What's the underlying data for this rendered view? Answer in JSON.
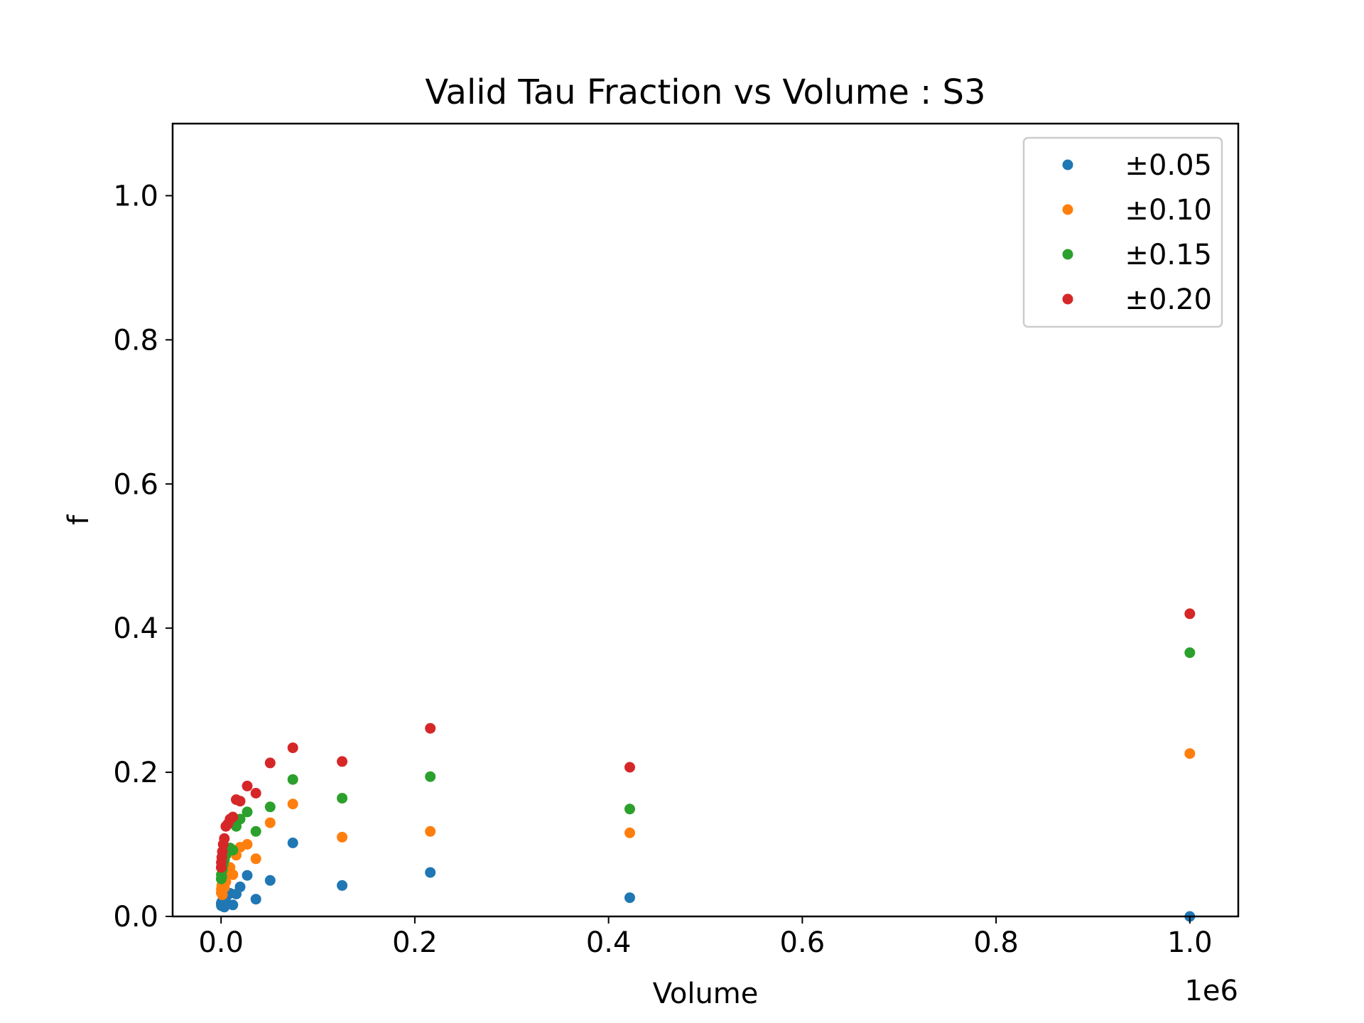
{
  "chart_data": {
    "type": "scatter",
    "title": "Valid Tau Fraction vs Volume : S3",
    "xlabel": "Volume",
    "ylabel": "f",
    "x_offset_label": "1e6",
    "xlim": [
      -0.05,
      1.05
    ],
    "ylim": [
      0.0,
      1.1
    ],
    "x_ticks": [
      0.0,
      0.2,
      0.4,
      0.6,
      0.8,
      1.0
    ],
    "x_tick_labels": [
      "0.0",
      "0.2",
      "0.4",
      "0.6",
      "0.8",
      "1.0"
    ],
    "y_ticks": [
      0.0,
      0.2,
      0.4,
      0.6,
      0.8,
      1.0
    ],
    "y_tick_labels": [
      "0.0",
      "0.2",
      "0.4",
      "0.6",
      "0.8",
      "1.0"
    ],
    "grid": false,
    "legend_position": "top-right",
    "x": [
      0.000125,
      0.000343,
      0.000729,
      0.001331,
      0.002197,
      0.003375,
      0.004913,
      0.006859,
      0.009261,
      0.012167,
      0.015625,
      0.019683,
      0.027,
      0.035937,
      0.050653,
      0.074088,
      0.125,
      0.216,
      0.421875,
      1.0
    ],
    "series": [
      {
        "name": "±0.05",
        "color": "#1f77b4",
        "values": [
          0.018,
          0.015,
          0.02,
          0.017,
          0.014,
          0.013,
          0.02,
          0.03,
          0.032,
          0.016,
          0.031,
          0.041,
          0.057,
          0.024,
          0.05,
          0.102,
          0.043,
          0.061,
          0.026,
          0.0
        ]
      },
      {
        "name": "±0.10",
        "color": "#ff7f0e",
        "values": [
          0.033,
          0.038,
          0.043,
          0.03,
          0.045,
          0.04,
          0.048,
          0.06,
          0.068,
          0.058,
          0.085,
          0.096,
          0.1,
          0.08,
          0.13,
          0.156,
          0.11,
          0.118,
          0.116,
          0.226
        ]
      },
      {
        "name": "±0.15",
        "color": "#2ca02c",
        "values": [
          0.052,
          0.058,
          0.055,
          0.065,
          0.072,
          0.078,
          0.085,
          0.09,
          0.095,
          0.092,
          0.125,
          0.135,
          0.145,
          0.118,
          0.152,
          0.19,
          0.164,
          0.194,
          0.149,
          0.366
        ]
      },
      {
        "name": "±0.20",
        "color": "#d62728",
        "values": [
          0.068,
          0.075,
          0.082,
          0.09,
          0.1,
          0.108,
          0.125,
          0.128,
          0.135,
          0.138,
          0.162,
          0.16,
          0.181,
          0.171,
          0.213,
          0.234,
          0.215,
          0.261,
          0.207,
          0.42
        ]
      }
    ]
  }
}
